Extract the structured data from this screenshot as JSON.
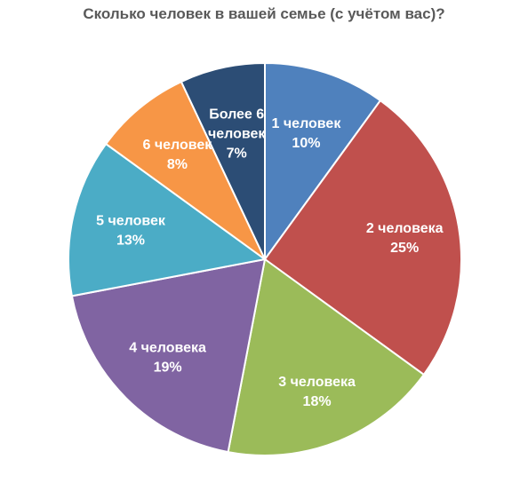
{
  "chart_data": {
    "type": "pie",
    "title": "Сколько человек в вашей семье (с учётом вас)?",
    "slices": [
      {
        "label": "1 человек",
        "percent_label": "10%",
        "value": 10,
        "color": "#4F81BD"
      },
      {
        "label": "2 человека",
        "percent_label": "25%",
        "value": 25,
        "color": "#C0504D"
      },
      {
        "label": "3 человека",
        "percent_label": "18%",
        "value": 18,
        "color": "#9BBB59"
      },
      {
        "label": "4 человека",
        "percent_label": "19%",
        "value": 19,
        "color": "#8064A2"
      },
      {
        "label": "5 человек",
        "percent_label": "13%",
        "value": 13,
        "color": "#4BACC6"
      },
      {
        "label": "6 человек",
        "percent_label": "8%",
        "value": 8,
        "color": "#F79646"
      },
      {
        "label": "Более 6 человек",
        "percent_label": "7%",
        "value": 7,
        "color": "#2C4D75"
      }
    ],
    "legend": "none",
    "start_angle_deg": 0,
    "direction": "clockwise"
  }
}
